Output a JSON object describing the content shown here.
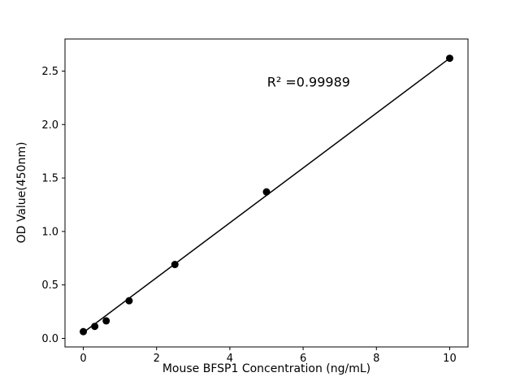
{
  "figure": {
    "xlabel": "Mouse BFSP1 Concentration (ng/mL)",
    "ylabel": "OD Value(450nm)",
    "annotation": "R² =0.99989"
  },
  "chart_data": {
    "type": "scatter",
    "title": "",
    "xlabel": "Mouse BFSP1 Concentration (ng/mL)",
    "ylabel": "OD Value(450nm)",
    "points": {
      "x": [
        0,
        0.3125,
        0.625,
        1.25,
        2.5,
        5,
        10
      ],
      "y": [
        0.063,
        0.112,
        0.164,
        0.352,
        0.691,
        1.37,
        2.62
      ]
    },
    "fit_line": {
      "x": [
        0,
        10
      ],
      "y": [
        0.055,
        2.62
      ]
    },
    "annotation": {
      "text": "R² =0.99989",
      "x": 6.15,
      "y": 2.4
    },
    "xlim": [
      -0.5,
      10.5
    ],
    "ylim": [
      -0.08,
      2.8
    ],
    "xticks": [
      0,
      2,
      4,
      6,
      8,
      10
    ],
    "xtick_labels": [
      "0",
      "2",
      "4",
      "6",
      "8",
      "10"
    ],
    "yticks": [
      0.0,
      0.5,
      1.0,
      1.5,
      2.0,
      2.5
    ],
    "ytick_labels": [
      "0.0",
      "0.5",
      "1.0",
      "1.5",
      "2.0",
      "2.5"
    ],
    "marker_color": "#000000",
    "line_color": "#000000",
    "grid": false,
    "legend_position": "none"
  }
}
